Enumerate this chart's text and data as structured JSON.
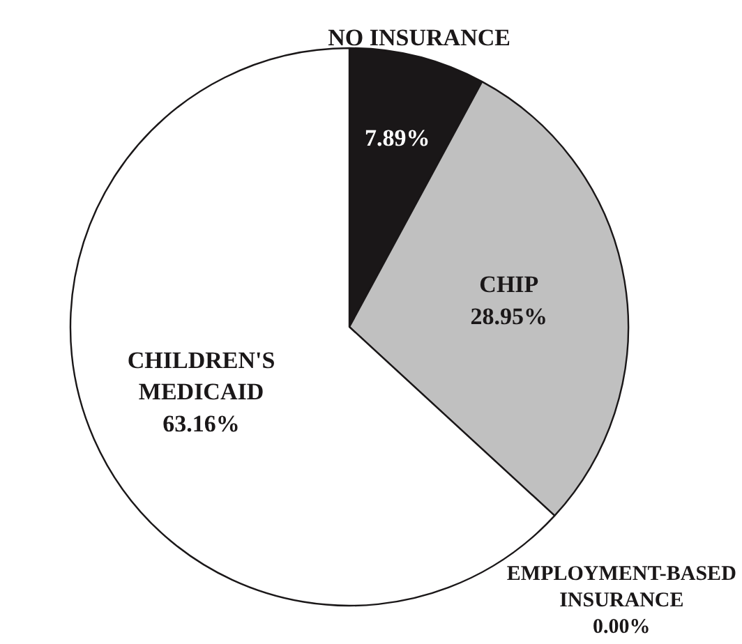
{
  "chart_data": {
    "type": "pie",
    "categories": [
      "NO INSURANCE",
      "CHIP",
      "EMPLOYMENT-BASED INSURANCE",
      "CHILDREN'S MEDICAID"
    ],
    "values": [
      7.89,
      28.95,
      0.0,
      63.16
    ],
    "colors": [
      "#1a1718",
      "#c0c0c0",
      "#ffffff",
      "#ffffff"
    ],
    "value_labels": [
      "7.89%",
      "28.95%",
      "0.00%",
      "63.16%"
    ]
  }
}
